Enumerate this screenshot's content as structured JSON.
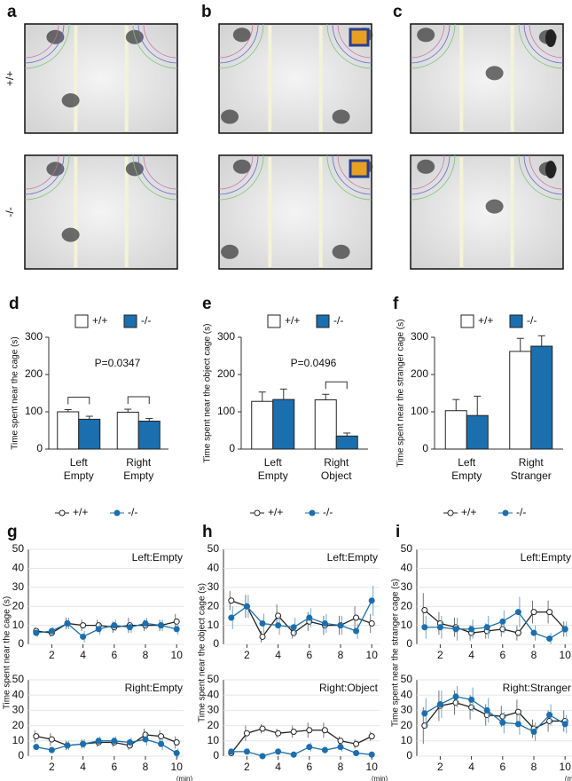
{
  "images": {
    "panels": [
      "a",
      "b",
      "c"
    ],
    "rows": [
      "+/+",
      "-/-"
    ]
  },
  "chart_data": [
    {
      "type": "bar",
      "panel": "d",
      "ylabel": "Time spent near the cage (s)",
      "annotation": "P=0.0347",
      "categories": [
        "Left Empty",
        "Right Empty"
      ],
      "ylim": [
        0,
        300
      ],
      "yticks": [
        0,
        100,
        200,
        300
      ],
      "series": [
        {
          "name": "+/+",
          "color": "#ffffff",
          "values": [
            100,
            99
          ],
          "errors": [
            6,
            8
          ]
        },
        {
          "name": "-/-",
          "color": "#1b6fae",
          "values": [
            80,
            75
          ],
          "errors": [
            8,
            7
          ]
        }
      ]
    },
    {
      "type": "bar",
      "panel": "e",
      "ylabel": "Time spent near the object cage (s)",
      "annotation": "P=0.0496",
      "categories": [
        "Left Empty",
        "Right Object"
      ],
      "ylim": [
        0,
        300
      ],
      "yticks": [
        0,
        100,
        200,
        300
      ],
      "series": [
        {
          "name": "+/+",
          "color": "#ffffff",
          "values": [
            128,
            132
          ],
          "errors": [
            25,
            15
          ]
        },
        {
          "name": "-/-",
          "color": "#1b6fae",
          "values": [
            133,
            35
          ],
          "errors": [
            28,
            8
          ]
        }
      ]
    },
    {
      "type": "bar",
      "panel": "f",
      "ylabel": "Time spent near the stranger cage (s)",
      "categories": [
        "Left Empty",
        "Right Stranger"
      ],
      "ylim": [
        0,
        300
      ],
      "yticks": [
        0,
        100,
        200,
        300
      ],
      "series": [
        {
          "name": "+/+",
          "color": "#ffffff",
          "values": [
            103,
            262
          ],
          "errors": [
            30,
            35
          ]
        },
        {
          "name": "-/-",
          "color": "#1b6fae",
          "values": [
            90,
            276
          ],
          "errors": [
            52,
            28
          ]
        }
      ]
    },
    {
      "type": "line",
      "panel": "g",
      "ylabel": "Time spent near the cage (s)",
      "subtitle": "Left:Empty",
      "x": [
        1,
        2,
        3,
        4,
        5,
        6,
        7,
        8,
        9,
        10
      ],
      "xlim": [
        0.5,
        10.5
      ],
      "xticks": [
        2,
        4,
        6,
        8,
        10
      ],
      "ylim": [
        0,
        50
      ],
      "yticks": [
        0,
        10,
        20,
        30,
        40,
        50
      ],
      "series": [
        {
          "name": "+/+",
          "color": "#222222",
          "values": [
            7,
            6,
            11,
            10,
            10,
            9,
            10,
            10,
            10,
            12
          ],
          "errors": [
            2,
            2,
            3,
            3,
            3,
            3,
            4,
            3,
            3,
            4
          ]
        },
        {
          "name": "-/-",
          "color": "#1b6fae",
          "values": [
            6,
            7,
            11,
            4,
            8,
            10,
            9,
            11,
            10,
            8
          ],
          "errors": [
            2,
            2,
            3,
            3,
            3,
            3,
            3,
            3,
            3,
            3
          ]
        }
      ]
    },
    {
      "type": "line",
      "subtitle": "Right:Empty",
      "xlabel": "(min)",
      "x": [
        1,
        2,
        3,
        4,
        5,
        6,
        7,
        8,
        9,
        10
      ],
      "xlim": [
        0.5,
        10.5
      ],
      "xticks": [
        2,
        4,
        6,
        8,
        10
      ],
      "ylim": [
        0,
        50
      ],
      "yticks": [
        0,
        10,
        20,
        30,
        40,
        50
      ],
      "series": [
        {
          "color": "#222222",
          "values": [
            13,
            11,
            7,
            8,
            9,
            9,
            7,
            14,
            13,
            9
          ],
          "errors": [
            4,
            4,
            3,
            3,
            3,
            3,
            3,
            4,
            4,
            4
          ]
        },
        {
          "color": "#1b6fae",
          "values": [
            6,
            4,
            7,
            8,
            10,
            10,
            9,
            11,
            8,
            2
          ],
          "errors": [
            2,
            2,
            3,
            3,
            3,
            3,
            3,
            4,
            4,
            3
          ]
        }
      ]
    },
    {
      "type": "line",
      "panel": "h",
      "ylabel": "Time spent near the object cage (s)",
      "subtitle": "Left:Empty",
      "x": [
        1,
        2,
        3,
        4,
        5,
        6,
        7,
        8,
        9,
        10
      ],
      "xlim": [
        0.5,
        10.5
      ],
      "xticks": [
        2,
        4,
        6,
        8,
        10
      ],
      "ylim": [
        0,
        50
      ],
      "yticks": [
        0,
        10,
        20,
        30,
        40,
        50
      ],
      "series": [
        {
          "name": "+/+",
          "color": "#222222",
          "values": [
            23,
            20,
            4,
            15,
            6,
            12,
            10,
            10,
            14,
            11
          ],
          "errors": [
            5,
            6,
            3,
            6,
            3,
            5,
            5,
            5,
            6,
            5
          ]
        },
        {
          "name": "-/-",
          "color": "#1b6fae",
          "values": [
            14,
            20,
            11,
            10,
            9,
            14,
            11,
            10,
            7,
            23
          ],
          "errors": [
            6,
            6,
            5,
            5,
            5,
            5,
            5,
            5,
            4,
            8
          ]
        }
      ]
    },
    {
      "type": "line",
      "subtitle": "Right:Object",
      "xlabel": "(min)",
      "x": [
        1,
        2,
        3,
        4,
        5,
        6,
        7,
        8,
        9,
        10
      ],
      "xlim": [
        0.5,
        10.5
      ],
      "xticks": [
        2,
        4,
        6,
        8,
        10
      ],
      "ylim": [
        0,
        50
      ],
      "yticks": [
        0,
        10,
        20,
        30,
        40,
        50
      ],
      "series": [
        {
          "color": "#222222",
          "values": [
            2,
            15,
            18,
            15,
            16,
            17,
            17,
            10,
            8,
            13
          ],
          "errors": [
            1,
            5,
            3,
            3,
            4,
            5,
            5,
            3,
            3,
            3
          ]
        },
        {
          "color": "#1b6fae",
          "values": [
            3,
            3,
            0,
            3,
            1,
            6,
            4,
            6,
            2,
            1
          ],
          "errors": [
            1,
            2,
            1,
            2,
            1,
            3,
            2,
            3,
            2,
            1
          ]
        }
      ]
    },
    {
      "type": "line",
      "panel": "i",
      "ylabel": "Time spent near the stranger cage (s)",
      "subtitle": "Left:Empty",
      "x": [
        1,
        2,
        3,
        4,
        5,
        6,
        7,
        8,
        9,
        10
      ],
      "xlim": [
        0.5,
        10.5
      ],
      "xticks": [
        2,
        4,
        6,
        8,
        10
      ],
      "ylim": [
        0,
        50
      ],
      "yticks": [
        0,
        10,
        20,
        30,
        40,
        50
      ],
      "series": [
        {
          "name": "+/+",
          "color": "#222222",
          "values": [
            18,
            11,
            9,
            6,
            7,
            8,
            6,
            17,
            17,
            8
          ],
          "errors": [
            9,
            6,
            5,
            4,
            4,
            4,
            4,
            6,
            6,
            4
          ]
        },
        {
          "name": "-/-",
          "color": "#1b6fae",
          "values": [
            9,
            9,
            8,
            8,
            9,
            12,
            17,
            6,
            3,
            8
          ],
          "errors": [
            6,
            6,
            6,
            5,
            6,
            6,
            8,
            4,
            3,
            4
          ]
        }
      ]
    },
    {
      "type": "line",
      "subtitle": "Right:Stranger",
      "xlabel": "(min)",
      "x": [
        1,
        2,
        3,
        4,
        5,
        6,
        7,
        8,
        9,
        10
      ],
      "xlim": [
        0.5,
        10.5
      ],
      "xticks": [
        2,
        4,
        6,
        8,
        10
      ],
      "ylim": [
        0,
        50
      ],
      "yticks": [
        0,
        10,
        20,
        30,
        40,
        50
      ],
      "series": [
        {
          "color": "#222222",
          "values": [
            20,
            33,
            35,
            32,
            27,
            26,
            29,
            18,
            23,
            23
          ],
          "errors": [
            12,
            10,
            8,
            8,
            7,
            7,
            8,
            6,
            7,
            7
          ]
        },
        {
          "color": "#1b6fae",
          "values": [
            28,
            34,
            39,
            37,
            30,
            22,
            21,
            16,
            27,
            21
          ],
          "errors": [
            10,
            9,
            7,
            8,
            8,
            7,
            7,
            6,
            7,
            6
          ]
        }
      ]
    }
  ]
}
